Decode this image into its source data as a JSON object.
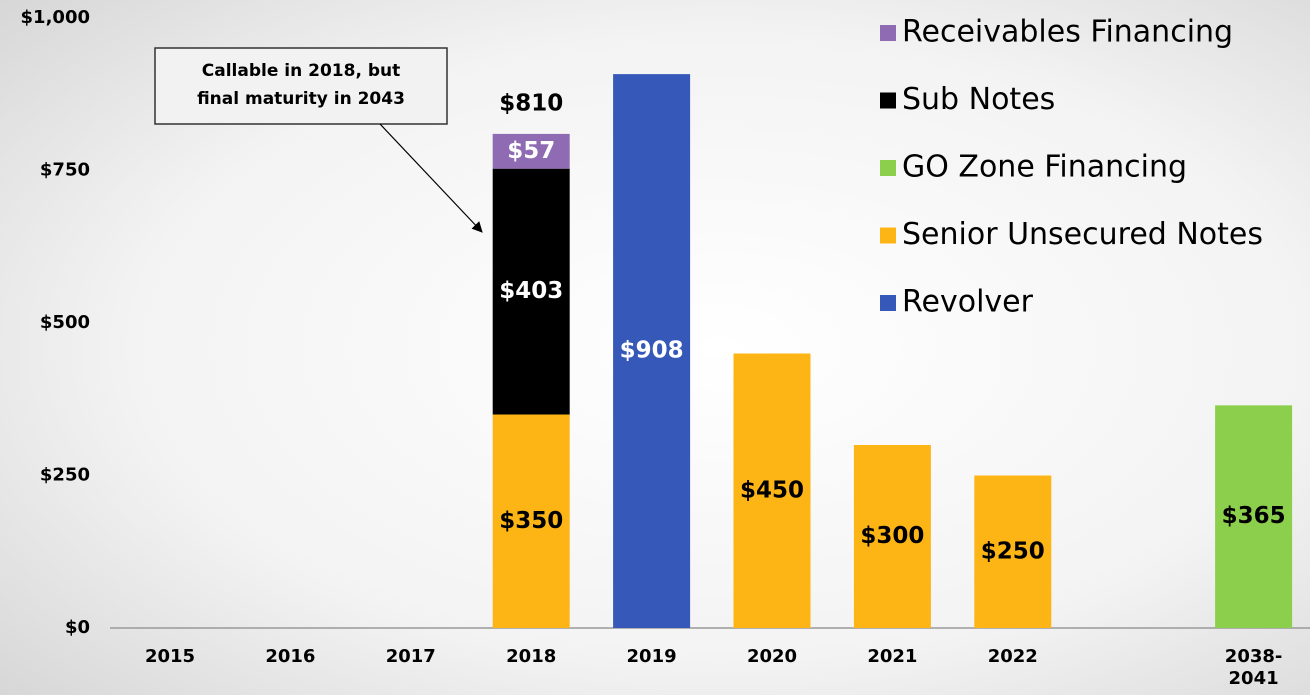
{
  "chart_data": {
    "type": "stacked_bar",
    "categories": [
      "2015",
      "2016",
      "2017",
      "2018",
      "2019",
      "2020",
      "2021",
      "2022",
      null,
      "2038-\n2041"
    ],
    "series": [
      {
        "name": "Receivables Financing",
        "color": "#8e6bb3",
        "values": [
          null,
          null,
          null,
          57,
          null,
          null,
          null,
          null,
          null,
          null
        ],
        "value_labels": [
          null,
          null,
          null,
          "$57",
          null,
          null,
          null,
          null,
          null,
          null
        ]
      },
      {
        "name": "Sub Notes",
        "color": "#000000",
        "values": [
          null,
          null,
          null,
          403,
          null,
          null,
          null,
          null,
          null,
          null
        ],
        "value_labels": [
          null,
          null,
          null,
          "$403",
          null,
          null,
          null,
          null,
          null,
          null
        ]
      },
      {
        "name": "GO Zone Financing",
        "color": "#8ccf4d",
        "values": [
          null,
          null,
          null,
          null,
          null,
          null,
          null,
          null,
          null,
          365
        ],
        "value_labels": [
          null,
          null,
          null,
          null,
          null,
          null,
          null,
          null,
          null,
          "$365"
        ]
      },
      {
        "name": "Senior Unsecured Notes",
        "color": "#fdb515",
        "values": [
          null,
          null,
          null,
          350,
          null,
          450,
          300,
          250,
          null,
          null
        ],
        "value_labels": [
          null,
          null,
          null,
          "$350",
          null,
          "$450",
          "$300",
          "$250",
          null,
          null
        ]
      },
      {
        "name": "Revolver",
        "color": "#3558b9",
        "values": [
          null,
          null,
          null,
          null,
          908,
          null,
          null,
          null,
          null,
          null
        ],
        "value_labels": [
          null,
          null,
          null,
          null,
          "$908",
          null,
          null,
          null,
          null,
          null
        ]
      }
    ],
    "totals": [
      null,
      null,
      null,
      810,
      null,
      null,
      null,
      null,
      null,
      null
    ],
    "total_labels": [
      null,
      null,
      null,
      "$810",
      null,
      null,
      null,
      null,
      null,
      null
    ],
    "annotation": {
      "lines": [
        "Callable in 2018, but",
        "final maturity in 2043"
      ]
    },
    "ylim": [
      0,
      1000
    ],
    "yticks": [
      {
        "value": 0,
        "label": "$0"
      },
      {
        "value": 250,
        "label": "$250"
      },
      {
        "value": 500,
        "label": "$500"
      },
      {
        "value": 750,
        "label": "$750"
      },
      {
        "value": 1000,
        "label": "$1,000"
      }
    ],
    "legend": "top-right"
  }
}
